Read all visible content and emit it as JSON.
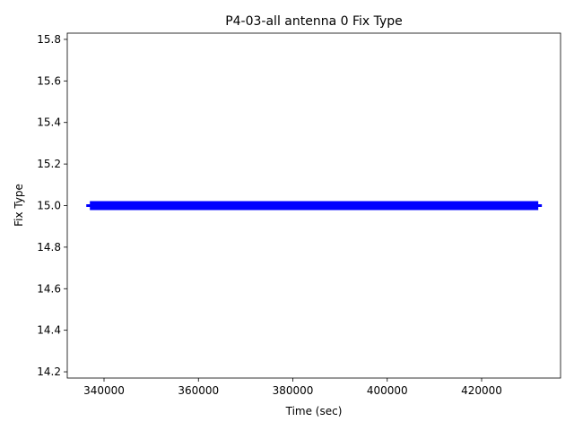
{
  "chart_data": {
    "type": "line",
    "title": "P4-03-all antenna 0 Fix Type",
    "x_label": "Time (sec)",
    "y_label": "Fix Type",
    "x": [
      337000,
      432000
    ],
    "series": [
      {
        "name": "Fix Type",
        "color": "#0000ff",
        "values": [
          15,
          15
        ]
      }
    ],
    "xlim": [
      332210,
      436720
    ],
    "xticks": [
      340000,
      360000,
      380000,
      400000,
      420000
    ],
    "ylim": [
      14.17,
      15.83
    ],
    "yticks": [
      14.2,
      14.4,
      14.6,
      14.8,
      {
        "value": 15,
        "label": "15.0"
      },
      15.2,
      15.4,
      15.6,
      15.8
    ]
  }
}
